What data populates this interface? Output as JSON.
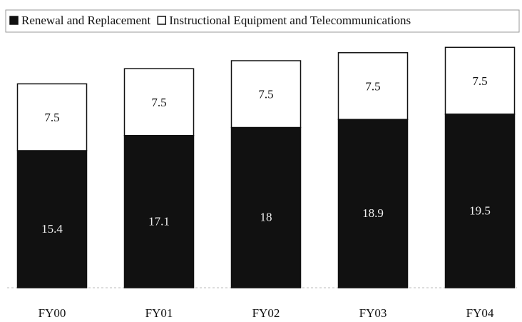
{
  "chart_data": {
    "type": "bar",
    "stacked": true,
    "categories": [
      "FY00",
      "FY01",
      "FY02",
      "FY03",
      "FY04"
    ],
    "series": [
      {
        "name": "Renewal and Replacement",
        "color": "#111111",
        "values": [
          15.4,
          17.1,
          18.0,
          18.9,
          19.5
        ]
      },
      {
        "name": "Instructional Equipment and Telecommunications",
        "color": "#ffffff",
        "values": [
          7.5,
          7.5,
          7.5,
          7.5,
          7.5
        ]
      }
    ]
  }
}
